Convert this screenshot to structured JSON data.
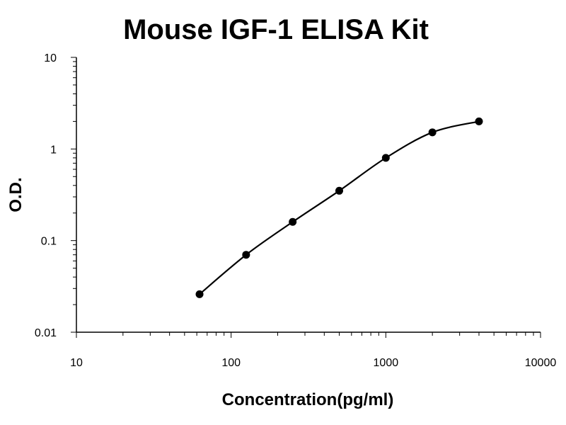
{
  "chart_data": {
    "type": "scatter",
    "title": "Mouse IGF-1 ELISA Kit",
    "xlabel": "Concentration(pg/ml)",
    "ylabel": "O.D.",
    "x_scale": "log",
    "y_scale": "log",
    "xlim": [
      10,
      10000
    ],
    "ylim": [
      0.01,
      10
    ],
    "x_ticks": [
      "10",
      "100",
      "1000",
      "10000"
    ],
    "y_ticks": [
      "0.01",
      "0.1",
      "1",
      "10"
    ],
    "grid": false,
    "legend": "none",
    "series": [
      {
        "x": [
          62.5,
          125,
          250,
          500,
          1000,
          2000,
          4000
        ],
        "y": [
          0.026,
          0.07,
          0.16,
          0.35,
          0.8,
          1.52,
          2.0
        ],
        "marker": "circle",
        "fit_line": "smooth curve",
        "color": "#000000"
      }
    ]
  }
}
